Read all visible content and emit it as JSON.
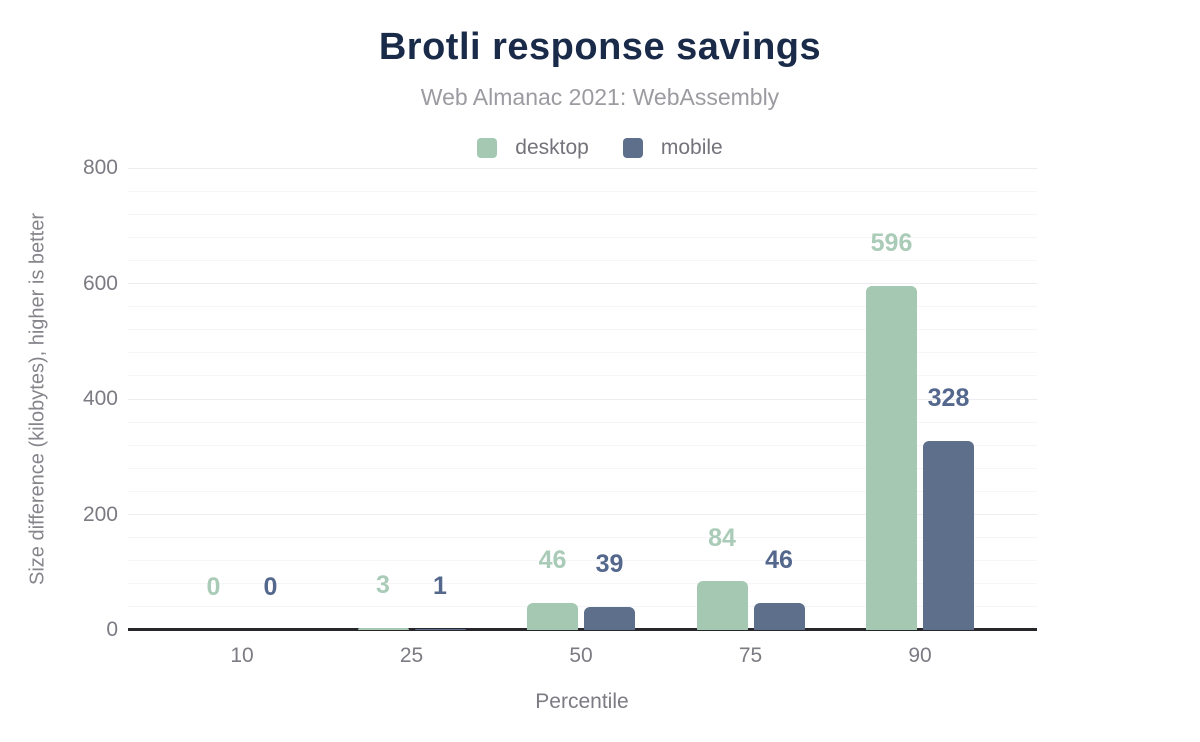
{
  "chart_data": {
    "type": "bar",
    "title": "Brotli response savings",
    "subtitle": "Web Almanac 2021: WebAssembly",
    "categories": [
      "10",
      "25",
      "50",
      "75",
      "90"
    ],
    "series": [
      {
        "name": "desktop",
        "values": [
          0,
          3,
          46,
          84,
          596
        ],
        "color": "#a5c8b3",
        "label_color": "#a9cbb7"
      },
      {
        "name": "mobile",
        "values": [
          0,
          1,
          39,
          46,
          328
        ],
        "color": "#5e6f8b",
        "label_color": "#54678d"
      }
    ],
    "xlabel": "Percentile",
    "ylabel": "Size difference (kilobytes), higher is better",
    "ylim": [
      0,
      800
    ],
    "yticks": [
      0,
      200,
      400,
      600,
      800
    ],
    "minor_grid_step": 40,
    "grid": true,
    "legend_position": "top",
    "data_labels": true,
    "title_color": "#1a2b49"
  }
}
